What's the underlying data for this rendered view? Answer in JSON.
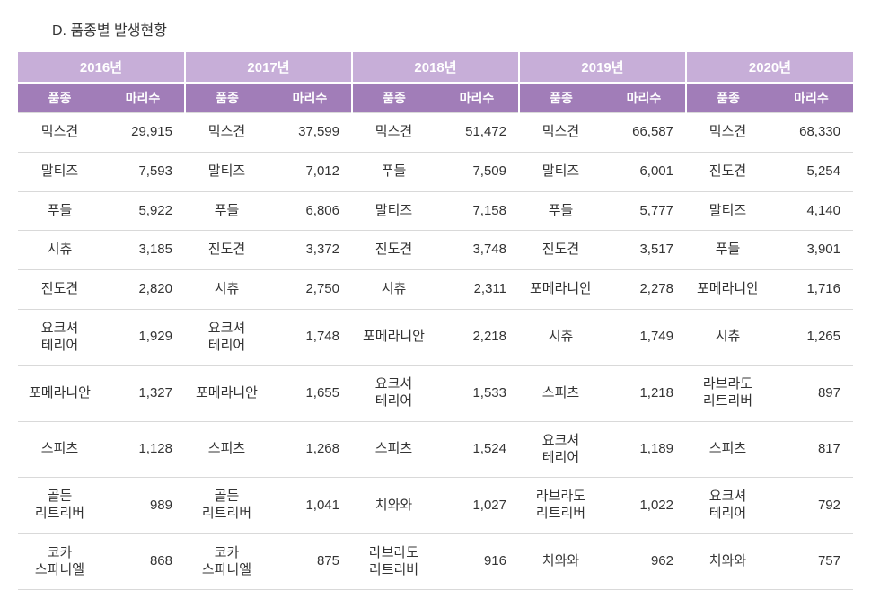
{
  "title": "D.  품종별  발생현황",
  "years": [
    "2016년",
    "2017년",
    "2018년",
    "2019년",
    "2020년"
  ],
  "subheaders": {
    "breed": "품종",
    "count": "마리수"
  },
  "rows": [
    [
      {
        "breed": "믹스견",
        "count": "29,915"
      },
      {
        "breed": "믹스견",
        "count": "37,599"
      },
      {
        "breed": "믹스견",
        "count": "51,472"
      },
      {
        "breed": "믹스견",
        "count": "66,587"
      },
      {
        "breed": "믹스견",
        "count": "68,330"
      }
    ],
    [
      {
        "breed": "말티즈",
        "count": "7,593"
      },
      {
        "breed": "말티즈",
        "count": "7,012"
      },
      {
        "breed": "푸들",
        "count": "7,509"
      },
      {
        "breed": "말티즈",
        "count": "6,001"
      },
      {
        "breed": "진도견",
        "count": "5,254"
      }
    ],
    [
      {
        "breed": "푸들",
        "count": "5,922"
      },
      {
        "breed": "푸들",
        "count": "6,806"
      },
      {
        "breed": "말티즈",
        "count": "7,158"
      },
      {
        "breed": "푸들",
        "count": "5,777"
      },
      {
        "breed": "말티즈",
        "count": "4,140"
      }
    ],
    [
      {
        "breed": "시츄",
        "count": "3,185"
      },
      {
        "breed": "진도견",
        "count": "3,372"
      },
      {
        "breed": "진도견",
        "count": "3,748"
      },
      {
        "breed": "진도견",
        "count": "3,517"
      },
      {
        "breed": "푸들",
        "count": "3,901"
      }
    ],
    [
      {
        "breed": "진도견",
        "count": "2,820"
      },
      {
        "breed": "시츄",
        "count": "2,750"
      },
      {
        "breed": "시츄",
        "count": "2,311"
      },
      {
        "breed": "포메라니안",
        "count": "2,278"
      },
      {
        "breed": "포메라니안",
        "count": "1,716"
      }
    ],
    [
      {
        "breed": "요크셔\n테리어",
        "count": "1,929"
      },
      {
        "breed": "요크셔\n테리어",
        "count": "1,748"
      },
      {
        "breed": "포메라니안",
        "count": "2,218"
      },
      {
        "breed": "시츄",
        "count": "1,749"
      },
      {
        "breed": "시츄",
        "count": "1,265"
      }
    ],
    [
      {
        "breed": "포메라니안",
        "count": "1,327"
      },
      {
        "breed": "포메라니안",
        "count": "1,655"
      },
      {
        "breed": "요크셔\n테리어",
        "count": "1,533"
      },
      {
        "breed": "스피츠",
        "count": "1,218"
      },
      {
        "breed": "라브라도\n리트리버",
        "count": "897"
      }
    ],
    [
      {
        "breed": "스피츠",
        "count": "1,128"
      },
      {
        "breed": "스피츠",
        "count": "1,268"
      },
      {
        "breed": "스피츠",
        "count": "1,524"
      },
      {
        "breed": "요크셔\n테리어",
        "count": "1,189"
      },
      {
        "breed": "스피츠",
        "count": "817"
      }
    ],
    [
      {
        "breed": "골든\n리트리버",
        "count": "989"
      },
      {
        "breed": "골든\n리트리버",
        "count": "1,041"
      },
      {
        "breed": "치와와",
        "count": "1,027"
      },
      {
        "breed": "라브라도\n리트리버",
        "count": "1,022"
      },
      {
        "breed": "요크셔\n테리어",
        "count": "792"
      }
    ],
    [
      {
        "breed": "코카\n스파니엘",
        "count": "868"
      },
      {
        "breed": "코카\n스파니엘",
        "count": "875"
      },
      {
        "breed": "라브라도\n리트리버",
        "count": "916"
      },
      {
        "breed": "치와와",
        "count": "962"
      },
      {
        "breed": "치와와",
        "count": "757"
      }
    ]
  ],
  "colors": {
    "year_header_bg": "#c7aed8",
    "sub_header_bg": "#a17db8",
    "header_text": "#ffffff",
    "body_text": "#333333",
    "row_border": "#d9d9d9",
    "background": "#ffffff"
  },
  "table_style": {
    "type": "table",
    "columns_per_year": 2,
    "breed_align": "center",
    "count_align": "right",
    "title_fontsize": 16,
    "header_fontsize": 15,
    "cell_fontsize": 15
  }
}
